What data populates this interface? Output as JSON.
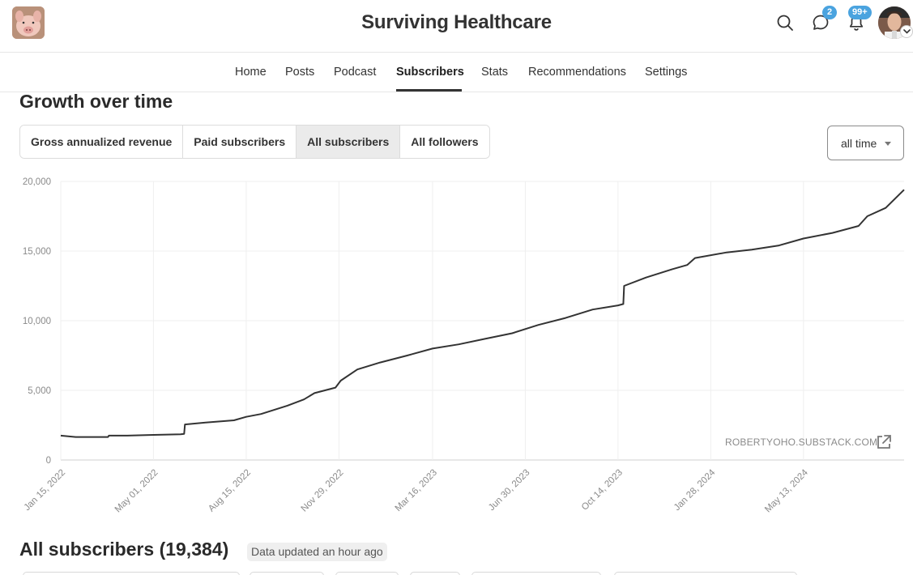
{
  "header": {
    "site_title": "Surviving Healthcare",
    "messages_badge": "2",
    "notifications_badge": "99+"
  },
  "nav": {
    "tabs": [
      {
        "label": "Home"
      },
      {
        "label": "Posts"
      },
      {
        "label": "Podcast"
      },
      {
        "label": "Subscribers",
        "active": true
      },
      {
        "label": "Stats"
      },
      {
        "label": "Recommendations"
      },
      {
        "label": "Settings"
      }
    ]
  },
  "growth": {
    "title": "Growth over time",
    "metrics": [
      {
        "label": "Gross annualized revenue"
      },
      {
        "label": "Paid subscribers"
      },
      {
        "label": "All subscribers",
        "active": true
      },
      {
        "label": "All followers"
      }
    ],
    "range_select": "all time",
    "watermark": "ROBERTYOHO.SUBSTACK.COM"
  },
  "chart_data": {
    "type": "line",
    "title": "",
    "xlabel": "",
    "ylabel": "",
    "x_ticks": [
      "Jan 15, 2022",
      "May 01, 2022",
      "Aug 15, 2022",
      "Nov 29, 2022",
      "Mar 16, 2023",
      "Jun 30, 2023",
      "Oct 14, 2023",
      "Jan 28, 2024",
      "May 13, 2024"
    ],
    "y_ticks": [
      "0",
      "5,000",
      "10,000",
      "15,000",
      "20,000"
    ],
    "ylim": [
      0,
      20000
    ],
    "xlim": [
      "2022-01-15",
      "2024-09-05"
    ],
    "grid": true,
    "legend": "none",
    "line_color": "#333333",
    "series": [
      {
        "points": [
          [
            "2022-01-15",
            1750
          ],
          [
            "2022-02-01",
            1650
          ],
          [
            "2022-03-01",
            1650
          ],
          [
            "2022-03-10",
            1650
          ],
          [
            "2022-03-11",
            1750
          ],
          [
            "2022-04-01",
            1750
          ],
          [
            "2022-05-01",
            1800
          ],
          [
            "2022-06-01",
            1850
          ],
          [
            "2022-06-05",
            1880
          ],
          [
            "2022-06-06",
            2550
          ],
          [
            "2022-07-01",
            2700
          ],
          [
            "2022-08-01",
            2850
          ],
          [
            "2022-08-15",
            3100
          ],
          [
            "2022-09-01",
            3300
          ],
          [
            "2022-10-01",
            3900
          ],
          [
            "2022-10-20",
            4350
          ],
          [
            "2022-11-01",
            4800
          ],
          [
            "2022-11-25",
            5200
          ],
          [
            "2022-12-01",
            5700
          ],
          [
            "2022-12-20",
            6500
          ],
          [
            "2023-01-15",
            7000
          ],
          [
            "2023-02-15",
            7500
          ],
          [
            "2023-03-16",
            8000
          ],
          [
            "2023-04-15",
            8300
          ],
          [
            "2023-05-15",
            8700
          ],
          [
            "2023-06-15",
            9100
          ],
          [
            "2023-07-15",
            9700
          ],
          [
            "2023-08-15",
            10200
          ],
          [
            "2023-09-15",
            10800
          ],
          [
            "2023-10-14",
            11100
          ],
          [
            "2023-10-20",
            11200
          ],
          [
            "2023-10-21",
            12500
          ],
          [
            "2023-11-15",
            13100
          ],
          [
            "2023-12-15",
            13700
          ],
          [
            "2024-01-01",
            14000
          ],
          [
            "2024-01-10",
            14500
          ],
          [
            "2024-02-15",
            14900
          ],
          [
            "2024-03-15",
            15100
          ],
          [
            "2024-04-15",
            15400
          ],
          [
            "2024-05-13",
            15900
          ],
          [
            "2024-06-15",
            16300
          ],
          [
            "2024-07-15",
            16800
          ],
          [
            "2024-07-25",
            17500
          ],
          [
            "2024-08-15",
            18100
          ],
          [
            "2024-09-05",
            19400
          ]
        ]
      }
    ]
  },
  "subscribers": {
    "title": "All subscribers (19,384)",
    "updated": "Data updated an hour ago"
  }
}
